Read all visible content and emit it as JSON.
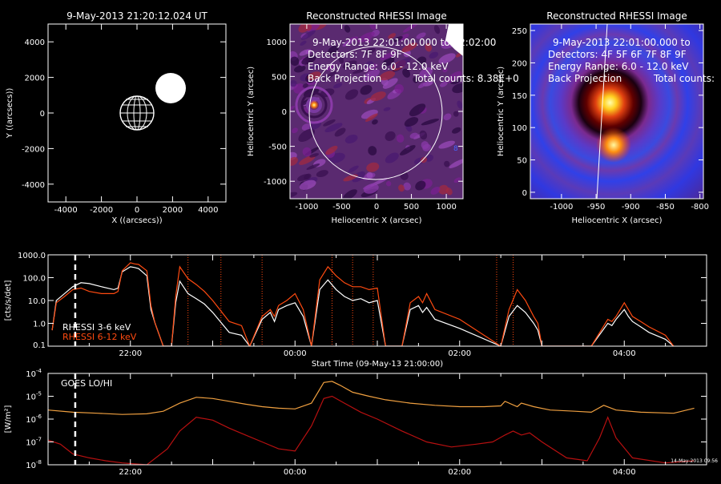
{
  "panel_locator": {
    "title": "9-May-2013 21:20:12.024 UT",
    "xlabel": "X ((arcsecs))",
    "ylabel": "Y ((arcsecs))",
    "xticks": [
      "-4000",
      "-2000",
      "0",
      "2000",
      "4000"
    ],
    "yticks": [
      "4000",
      "2000",
      "0",
      "-2000",
      "-4000"
    ]
  },
  "panel_image1": {
    "title": "Reconstructed RHESSI Image",
    "xlabel": "Heliocentric X (arcsec)",
    "ylabel": "Heliocentric Y (arcsec)",
    "xticks": [
      "-1000",
      "-500",
      "0",
      "500",
      "1000"
    ],
    "yticks": [
      "1000",
      "500",
      "0",
      "-500",
      "-1000"
    ],
    "info1": "9-May-2013 22:01:00.000 to 22:02:00",
    "info2": "Detectors: 7F 8F 9F",
    "info3": "Energy Range: 6.0 - 12.0 keV",
    "info4a": "Back Projection",
    "info4b": "Total counts: 8.38E+0"
  },
  "panel_image2": {
    "title": "Reconstructed RHESSI Image",
    "xlabel": "Heliocentric X (arcsec)",
    "ylabel": "Heliocentric Y (arcsec)",
    "xticks": [
      "-1000",
      "-950",
      "-900",
      "-850",
      "-800"
    ],
    "yticks": [
      "250",
      "200",
      "150",
      "100",
      "50",
      "0"
    ],
    "info1": "9-May-2013 22:01:00.000 to",
    "info2": "Detectors: 4F 5F 6F 7F 8F 9F",
    "info3": "Energy Range: 6.0 - 12.0 keV",
    "info4a": "Back Projection",
    "info4b": "Total counts:"
  },
  "panel_rhessi": {
    "ylabel": "[cts/s/det]",
    "xlabel": "Start Time (09-May-13 21:00:00)",
    "yticks": [
      "1000.0",
      "100.0",
      "10.0",
      "1.0",
      "0.1"
    ],
    "xticks": [
      "22:00",
      "00:00",
      "02:00",
      "04:00"
    ],
    "legend": [
      "RHESSI  3-6 keV",
      "RHESSI 6-12 keV"
    ]
  },
  "panel_goes": {
    "ylabel": "[W/m²]",
    "xticks": [
      "22:00",
      "00:00",
      "02:00",
      "04:00"
    ],
    "ytick_exps": [
      "-4",
      "-5",
      "-6",
      "-7",
      "-8"
    ],
    "legend": "GOES LO/HI",
    "footer": "14-May-2013 09:56"
  },
  "colors": {
    "rhessi_low": "#ffffff",
    "rhessi_high": "#ff4a10",
    "goes_lo": "#f0a040",
    "goes_hi": "#b81010",
    "marker": "#ffffff"
  },
  "chart_data": [
    {
      "type": "line",
      "id": "rhessi_lightcurve",
      "xlim": [
        0,
        8
      ],
      "x_unit": "hours after 09-May-13 21:00:00",
      "ylim": [
        0.1,
        1000
      ],
      "yscale": "log",
      "series": [
        {
          "name": "RHESSI  3-6 keV",
          "color": "#ffffff",
          "x": [
            0.05,
            0.1,
            0.2,
            0.3,
            0.4,
            0.5,
            0.65,
            0.8,
            0.85,
            0.9,
            1.0,
            1.05,
            1.1,
            1.2,
            1.25,
            1.3,
            1.4,
            1.5,
            1.55,
            1.6,
            1.7,
            1.8,
            1.9,
            2.0,
            2.2,
            2.35,
            2.45,
            2.6,
            2.7,
            2.75,
            2.8,
            2.9,
            3.0,
            3.1,
            3.2,
            3.3,
            3.4,
            3.5,
            3.6,
            3.7,
            3.8,
            3.9,
            4.0,
            4.1,
            4.2,
            4.3,
            4.4,
            4.5,
            4.55,
            4.6,
            4.7,
            5.0,
            5.5,
            5.6,
            5.7,
            5.8,
            5.9,
            5.95,
            6.0,
            6.3,
            6.6,
            6.8,
            6.85,
            6.9,
            7.0,
            7.05,
            7.1,
            7.2,
            7.3,
            7.5,
            7.6
          ],
          "y": [
            0.5,
            10,
            20,
            40,
            60,
            55,
            40,
            30,
            35,
            180,
            300,
            280,
            250,
            120,
            4,
            1,
            0.1,
            0.1,
            8,
            70,
            20,
            12,
            7,
            3,
            0.4,
            0.3,
            0.1,
            1.5,
            3,
            1.2,
            4,
            6,
            8,
            2,
            0.1,
            30,
            80,
            30,
            15,
            10,
            12,
            8,
            10,
            0.1,
            0.1,
            0.1,
            4,
            6,
            3,
            5,
            1.5,
            0.6,
            0.1,
            2,
            6,
            3,
            1,
            0.5,
            0.1,
            0.1,
            0.1,
            1.0,
            0.8,
            1.5,
            4,
            2,
            1.2,
            0.7,
            0.4,
            0.2,
            0.1
          ]
        },
        {
          "name": "RHESSI 6-12 keV",
          "color": "#ff4a10",
          "x": [
            0.05,
            0.1,
            0.2,
            0.3,
            0.4,
            0.5,
            0.65,
            0.8,
            0.85,
            0.9,
            1.0,
            1.05,
            1.1,
            1.2,
            1.25,
            1.3,
            1.4,
            1.5,
            1.55,
            1.6,
            1.7,
            1.8,
            1.9,
            2.0,
            2.2,
            2.35,
            2.45,
            2.6,
            2.7,
            2.75,
            2.8,
            2.9,
            3.0,
            3.1,
            3.2,
            3.3,
            3.4,
            3.5,
            3.6,
            3.7,
            3.8,
            3.9,
            4.0,
            4.1,
            4.2,
            4.3,
            4.4,
            4.5,
            4.55,
            4.6,
            4.7,
            5.0,
            5.5,
            5.6,
            5.7,
            5.8,
            5.9,
            5.95,
            6.0,
            6.3,
            6.6,
            6.8,
            6.85,
            6.9,
            7.0,
            7.05,
            7.1,
            7.2,
            7.3,
            7.5,
            7.6
          ],
          "y": [
            0.5,
            8,
            15,
            30,
            35,
            25,
            20,
            20,
            25,
            200,
            450,
            400,
            380,
            200,
            6,
            1,
            0.1,
            0.1,
            15,
            300,
            90,
            50,
            25,
            10,
            1.2,
            0.8,
            0.1,
            2,
            4,
            2,
            6,
            10,
            20,
            4,
            0.1,
            80,
            300,
            120,
            60,
            40,
            40,
            30,
            35,
            0.1,
            0.1,
            0.1,
            8,
            15,
            8,
            20,
            4,
            1.5,
            0.1,
            4,
            30,
            10,
            2,
            1,
            0.1,
            0.1,
            0.1,
            1.5,
            1.2,
            2,
            8,
            4,
            2,
            1.2,
            0.7,
            0.3,
            0.1
          ]
        }
      ],
      "marker_x": 0.33,
      "flag_lines_x": [
        1.7,
        2.1,
        2.6,
        3.45,
        3.7,
        3.95,
        5.45,
        5.65
      ]
    },
    {
      "type": "line",
      "id": "goes_lightcurve",
      "xlim": [
        0,
        8
      ],
      "x_unit": "hours after 09-May-13 21:00:00",
      "ylim": [
        1e-08,
        0.0001
      ],
      "yscale": "log",
      "series": [
        {
          "name": "GOES LO",
          "color": "#f0a040",
          "x": [
            0.0,
            0.3,
            0.6,
            0.9,
            1.2,
            1.4,
            1.6,
            1.8,
            2.0,
            2.2,
            2.4,
            2.6,
            2.8,
            3.0,
            3.2,
            3.35,
            3.45,
            3.55,
            3.7,
            3.9,
            4.1,
            4.4,
            4.7,
            5.0,
            5.3,
            5.5,
            5.55,
            5.7,
            5.75,
            5.9,
            6.1,
            6.4,
            6.6,
            6.75,
            6.9,
            7.2,
            7.6,
            7.85
          ],
          "y": [
            2.5e-06,
            2e-06,
            1.8e-06,
            1.6e-06,
            1.7e-06,
            2.2e-06,
            5e-06,
            9e-06,
            8e-06,
            6e-06,
            4.5e-06,
            3.5e-06,
            3e-06,
            2.8e-06,
            5e-06,
            4e-05,
            4.5e-05,
            3e-05,
            1.5e-05,
            1e-05,
            7e-06,
            5e-06,
            4e-06,
            3.5e-06,
            3.5e-06,
            3.8e-06,
            6e-06,
            3.5e-06,
            5e-06,
            3.5e-06,
            2.5e-06,
            2.2e-06,
            2e-06,
            4e-06,
            2.5e-06,
            2e-06,
            1.8e-06,
            3e-06
          ]
        },
        {
          "name": "GOES HI",
          "color": "#b81010",
          "x": [
            0.0,
            0.15,
            0.3,
            0.5,
            0.7,
            0.9,
            1.2,
            1.45,
            1.6,
            1.8,
            2.0,
            2.2,
            2.4,
            2.6,
            2.8,
            3.0,
            3.2,
            3.35,
            3.45,
            3.6,
            3.8,
            4.0,
            4.3,
            4.6,
            4.9,
            5.2,
            5.4,
            5.55,
            5.65,
            5.75,
            5.85,
            6.0,
            6.3,
            6.55,
            6.7,
            6.8,
            6.9,
            7.1,
            7.5,
            7.85
          ],
          "y": [
            1.2e-07,
            8e-08,
            3e-08,
            2e-08,
            1.5e-08,
            1.2e-08,
            1e-08,
            5e-08,
            3e-07,
            1.2e-06,
            9e-07,
            4e-07,
            2e-07,
            1e-07,
            5e-08,
            4e-08,
            5e-07,
            8e-06,
            1e-05,
            5e-06,
            2e-06,
            1e-06,
            3e-07,
            1e-07,
            6e-08,
            8e-08,
            1e-07,
            2e-07,
            3e-07,
            2e-07,
            2.5e-07,
            1e-07,
            2e-08,
            1.5e-08,
            1.5e-07,
            1.2e-06,
            1.5e-07,
            2e-08,
            1.2e-08,
            1.5e-08
          ]
        }
      ],
      "marker_x": 0.33
    }
  ]
}
